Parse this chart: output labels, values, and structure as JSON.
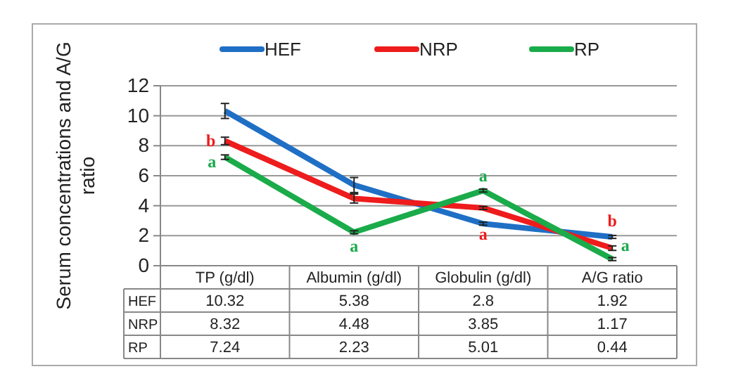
{
  "chart_data": {
    "type": "line",
    "ylabel": "Serum concentrations and A/G ratio",
    "categories": [
      "TP (g/dl)",
      "Albumin (g/dl)",
      "Globulin (g/dl)",
      "A/G ratio"
    ],
    "series": [
      {
        "name": "HEF",
        "color": "#1f6fc5",
        "values": [
          10.32,
          5.38,
          2.8,
          1.92
        ],
        "errors": [
          0.5,
          0.5,
          0.1,
          0.1
        ]
      },
      {
        "name": "NRP",
        "color": "#ee1c1c",
        "values": [
          8.32,
          4.48,
          3.85,
          1.17
        ],
        "errors": [
          0.25,
          0.3,
          0.1,
          0.15
        ]
      },
      {
        "name": "RP",
        "color": "#1aab4a",
        "values": [
          7.24,
          2.23,
          5.01,
          0.44
        ],
        "errors": [
          0.15,
          0.1,
          0.1,
          0.1
        ]
      }
    ],
    "ylim": [
      0,
      12
    ],
    "yticks": [
      0,
      2,
      4,
      6,
      8,
      10,
      12
    ],
    "grid": "y",
    "legend": "top",
    "marker": "none",
    "data_labels": true,
    "annotations": [
      {
        "text": "b",
        "x": "TP (g/dl)",
        "y": 8.32
      },
      {
        "text": "a",
        "x": "TP (g/dl)",
        "y": 7.24
      },
      {
        "text": "a",
        "x": "Albumin (g/dl)",
        "y": 2.23
      },
      {
        "text": "a",
        "x": "Globulin (g/dl)",
        "y": 5.01
      },
      {
        "text": "a",
        "x": "Globulin (g/dl)",
        "y": 3.85
      },
      {
        "text": "a",
        "x": "A/G ratio",
        "y": 0.44
      },
      {
        "text": "b",
        "x": "A/G ratio",
        "y": 1.17
      }
    ]
  }
}
